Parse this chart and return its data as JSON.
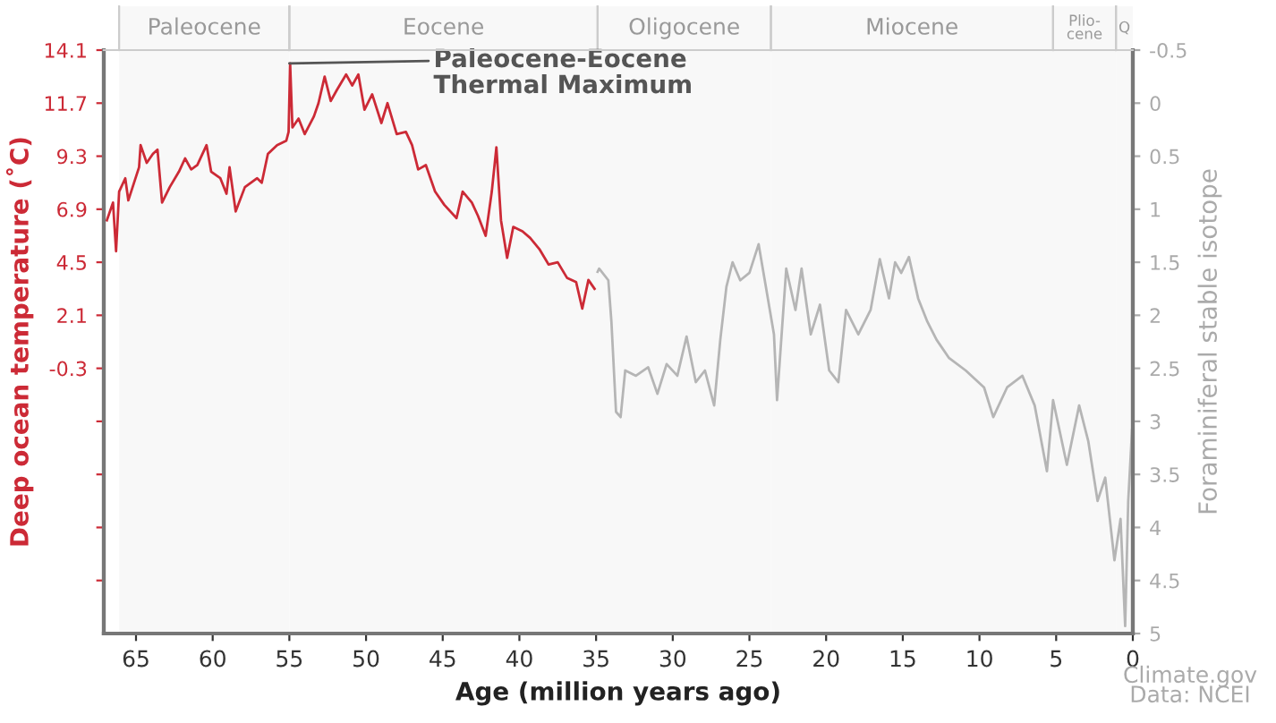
{
  "chart_data": {
    "type": "line",
    "xlabel": "Age (million years ago)",
    "ylabel": "Deep ocean temperature (˚C)",
    "y2label": "Foraminiferal stable isotope",
    "xlim": [
      67.1,
      0
    ],
    "xticks": [
      65,
      60,
      55,
      50,
      45,
      40,
      35,
      30,
      25,
      20,
      15,
      10,
      5,
      0
    ],
    "ylim": [
      -12.3,
      14.1
    ],
    "yticks": [
      14.1,
      11.7,
      9.3,
      6.9,
      4.5,
      2.1,
      -0.3,
      {
        "value": -2.7,
        "label": null
      },
      {
        "value": -5.1,
        "label": null
      },
      {
        "value": -7.5,
        "label": null
      },
      {
        "value": -9.9,
        "label": null
      }
    ],
    "y2lim": [
      5,
      -0.5
    ],
    "y2ticks": [
      -0.5,
      0,
      0.5,
      1,
      1.5,
      2,
      2.5,
      3,
      3.5,
      4,
      4.5,
      5
    ],
    "grid": false,
    "legend": false,
    "series": [
      {
        "color": "#cc2a36",
        "axis": "y",
        "x": [
          66.9,
          66.5,
          66.3,
          66.1,
          65.7,
          65.5,
          64.8,
          64.7,
          64.3,
          63.9,
          63.6,
          63.3,
          62.8,
          62.2,
          61.8,
          61.4,
          61.0,
          60.4,
          60.1,
          59.5,
          59.1,
          58.9,
          58.5,
          57.9,
          57.1,
          56.8,
          56.4,
          55.8,
          55.2,
          55.05,
          54.95,
          54.8,
          54.4,
          54.0,
          53.4,
          53.1,
          52.7,
          52.3,
          51.9,
          51.3,
          50.9,
          50.5,
          50.1,
          49.6,
          49.0,
          48.6,
          48.0,
          47.4,
          47.0,
          46.6,
          46.1,
          45.5,
          44.9,
          44.1,
          43.7,
          43.1,
          42.7,
          42.2,
          41.8,
          41.5,
          41.2,
          40.8,
          40.4,
          39.8,
          39.3,
          38.7,
          38.1,
          37.5,
          36.9,
          36.3,
          35.9,
          35.5,
          35.1
        ],
        "values": [
          6.4,
          7.2,
          5.0,
          7.7,
          8.3,
          7.3,
          8.8,
          9.8,
          9.0,
          9.4,
          9.6,
          7.2,
          7.9,
          8.6,
          9.2,
          8.7,
          8.9,
          9.8,
          8.6,
          8.3,
          7.6,
          8.8,
          6.8,
          7.9,
          8.3,
          8.1,
          9.4,
          9.8,
          10.0,
          10.4,
          13.5,
          10.6,
          11.0,
          10.3,
          11.1,
          11.7,
          12.9,
          11.8,
          12.3,
          13.0,
          12.5,
          13.0,
          11.4,
          12.1,
          10.8,
          11.7,
          10.3,
          10.4,
          9.8,
          8.7,
          8.9,
          7.7,
          7.1,
          6.5,
          7.7,
          7.2,
          6.6,
          5.7,
          7.7,
          9.7,
          6.4,
          4.7,
          6.1,
          5.9,
          5.6,
          5.1,
          4.4,
          4.5,
          3.8,
          3.6,
          2.4,
          3.7,
          3.3
        ]
      },
      {
        "color": "#b5b5b5",
        "axis": "y2",
        "x": [
          34.9,
          34.8,
          34.2,
          34.0,
          33.7,
          33.4,
          33.1,
          32.4,
          31.6,
          31.0,
          30.4,
          29.7,
          29.1,
          28.5,
          27.9,
          27.3,
          26.9,
          26.5,
          26.1,
          25.6,
          25.0,
          24.4,
          24.0,
          23.4,
          23.2,
          22.6,
          22.0,
          21.6,
          21.0,
          20.4,
          19.8,
          19.2,
          18.7,
          17.9,
          17.1,
          16.5,
          15.9,
          15.5,
          15.1,
          14.6,
          14.0,
          13.4,
          12.8,
          12.0,
          10.9,
          9.7,
          9.1,
          8.2,
          7.2,
          6.4,
          5.6,
          5.2,
          4.3,
          3.5,
          2.9,
          2.3,
          1.8,
          1.2,
          0.8,
          0.5,
          0.3,
          0.05
        ],
        "values": [
          1.59,
          1.56,
          1.67,
          2.06,
          2.91,
          2.96,
          2.52,
          2.57,
          2.49,
          2.74,
          2.46,
          2.57,
          2.2,
          2.63,
          2.52,
          2.85,
          2.23,
          1.73,
          1.5,
          1.67,
          1.6,
          1.33,
          1.67,
          2.18,
          2.8,
          1.56,
          1.95,
          1.56,
          2.18,
          1.9,
          2.52,
          2.63,
          1.95,
          2.18,
          1.95,
          1.47,
          1.84,
          1.5,
          1.6,
          1.45,
          1.84,
          2.06,
          2.23,
          2.4,
          2.52,
          2.68,
          2.96,
          2.68,
          2.57,
          2.85,
          3.47,
          2.8,
          3.41,
          2.85,
          3.19,
          3.75,
          3.53,
          4.31,
          3.92,
          4.93,
          3.75,
          3.08
        ]
      }
    ],
    "bands": [
      {
        "axis": "x",
        "from": 66.1,
        "to": 55,
        "label": "Paleocene"
      },
      {
        "axis": "x",
        "from": 55,
        "to": 34.9,
        "label": "Eocene"
      },
      {
        "axis": "x",
        "from": 34.9,
        "to": 23.6,
        "label": "Oligocene"
      },
      {
        "axis": "x",
        "from": 23.6,
        "to": 5.2,
        "label": "Miocene"
      },
      {
        "axis": "x",
        "from": 5.2,
        "to": 1.1,
        "label": "Plio-\ncene"
      },
      {
        "axis": "x",
        "from": 1.1,
        "to": 0,
        "label": "Q"
      }
    ],
    "annotations": [
      {
        "text": "Paleocene-Eocene\nThermal Maximum",
        "x": 55,
        "y": 13.5
      },
      "Climate.gov",
      "Data: NCEI"
    ]
  }
}
